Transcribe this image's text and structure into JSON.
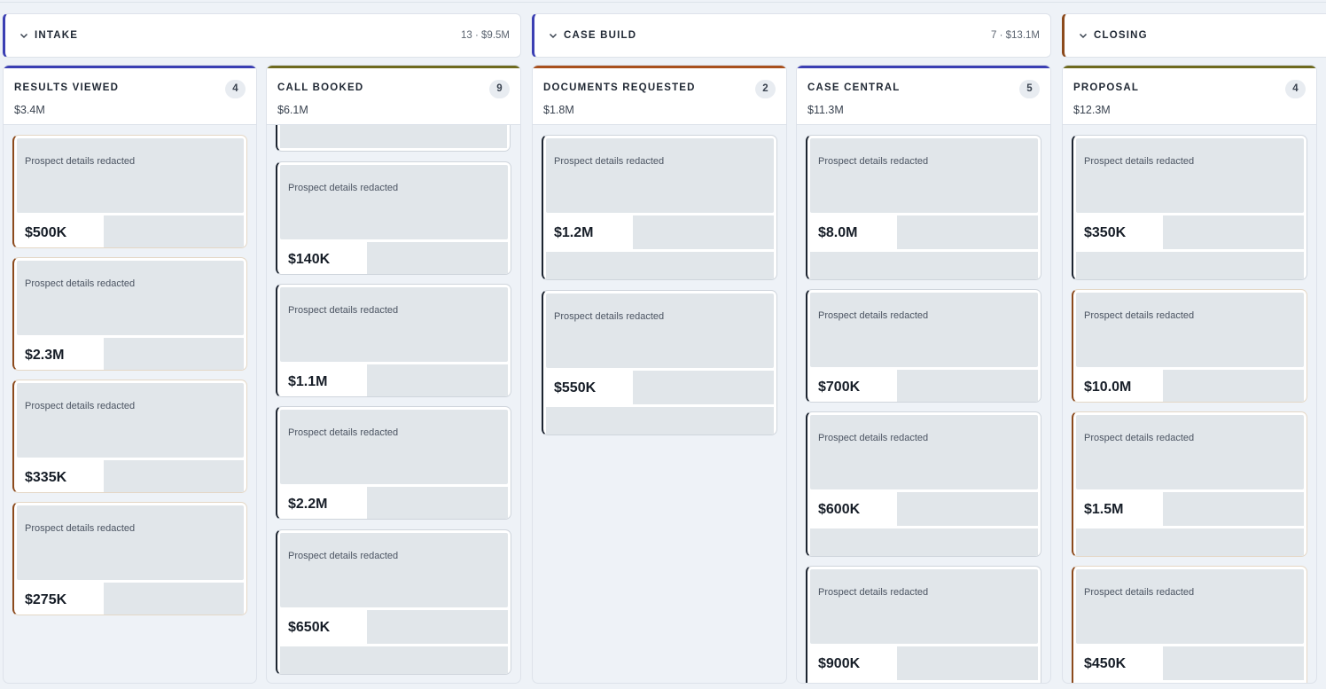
{
  "groups": [
    {
      "title": "INTAKE",
      "meta": "13 · $9.5M",
      "color": "#3b3fb3"
    },
    {
      "title": "CASE BUILD",
      "meta": "7 · $13.1M",
      "color": "#3b3fb3"
    },
    {
      "title": "CLOSING",
      "meta": "",
      "color": "#8c4a1c"
    }
  ],
  "columns": [
    {
      "title": "RESULTS VIEWED",
      "count": "4",
      "amount": "$3.4M",
      "color": "#3b3fb3",
      "cards": [
        {
          "text": "Prospect details redacted",
          "value": "$500K"
        },
        {
          "text": "Prospect details redacted",
          "value": "$2.3M"
        },
        {
          "text": "Prospect details redacted",
          "value": "$335K"
        },
        {
          "text": "Prospect details redacted",
          "value": "$275K"
        }
      ]
    },
    {
      "title": "CALL BOOKED",
      "count": "9",
      "amount": "$6.1M",
      "color": "#6e6a1f",
      "cards": [
        {
          "text": "Prospect details redacted",
          "value": "$140K"
        },
        {
          "text": "Prospect details redacted",
          "value": "$1.1M"
        },
        {
          "text": "Prospect details redacted",
          "value": "$2.2M"
        },
        {
          "text": "Prospect details redacted",
          "value": "$650K"
        }
      ]
    },
    {
      "title": "DOCUMENTS REQUESTED",
      "count": "2",
      "amount": "$1.8M",
      "color": "#a8501d",
      "cards": [
        {
          "text": "Prospect details redacted",
          "value": "$1.2M"
        },
        {
          "text": "Prospect details redacted",
          "value": "$550K"
        }
      ]
    },
    {
      "title": "CASE CENTRAL",
      "count": "5",
      "amount": "$11.3M",
      "color": "#3b3fb3",
      "cards": [
        {
          "text": "Prospect details redacted",
          "value": "$8.0M"
        },
        {
          "text": "Prospect details redacted",
          "value": "$700K"
        },
        {
          "text": "Prospect details redacted",
          "value": "$600K"
        },
        {
          "text": "Prospect details redacted",
          "value": "$900K"
        }
      ]
    },
    {
      "title": "PROPOSAL",
      "count": "4",
      "amount": "$12.3M",
      "color": "#6e6a1f",
      "cards": [
        {
          "text": "Prospect details redacted",
          "value": "$350K"
        },
        {
          "text": "Prospect details redacted",
          "value": "$10.0M"
        },
        {
          "text": "Prospect details redacted",
          "value": "$1.5M"
        },
        {
          "text": "Prospect details redacted",
          "value": "$450K"
        }
      ]
    }
  ]
}
